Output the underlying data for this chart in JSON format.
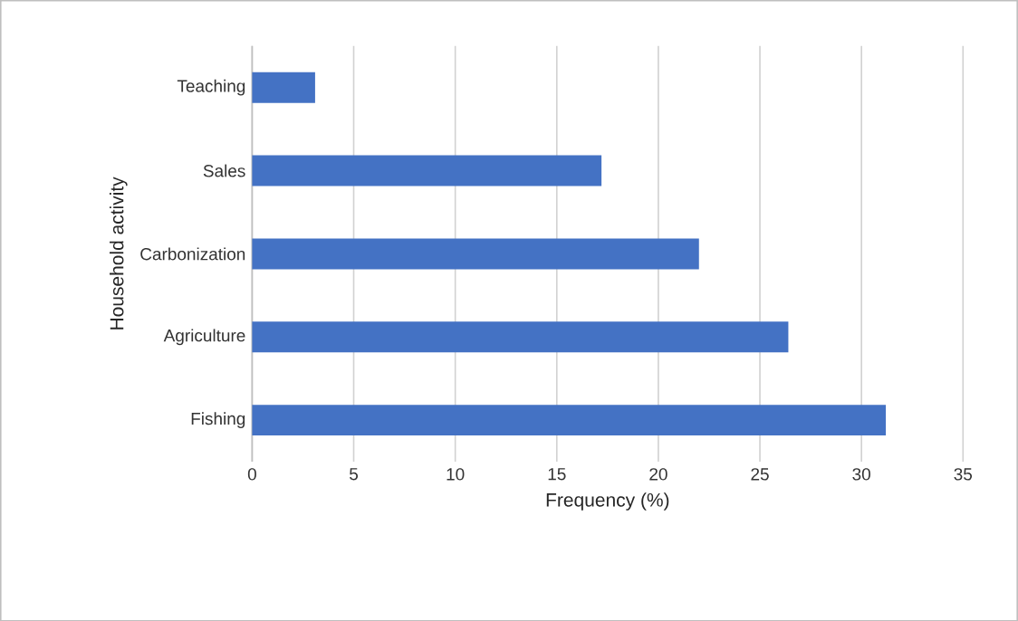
{
  "chart_data": {
    "type": "bar",
    "orientation": "horizontal",
    "categories": [
      "Teaching",
      "Sales",
      "Carbonization",
      "Agriculture",
      "Fishing"
    ],
    "values": [
      3.1,
      17.2,
      22.0,
      26.4,
      31.2
    ],
    "color": "#4472c4",
    "xlabel": "Frequency (%)",
    "ylabel": "Household activity",
    "xlim": [
      0,
      35
    ],
    "xticks": [
      0,
      5,
      10,
      15,
      20,
      25,
      30,
      35
    ],
    "grid": "x"
  }
}
